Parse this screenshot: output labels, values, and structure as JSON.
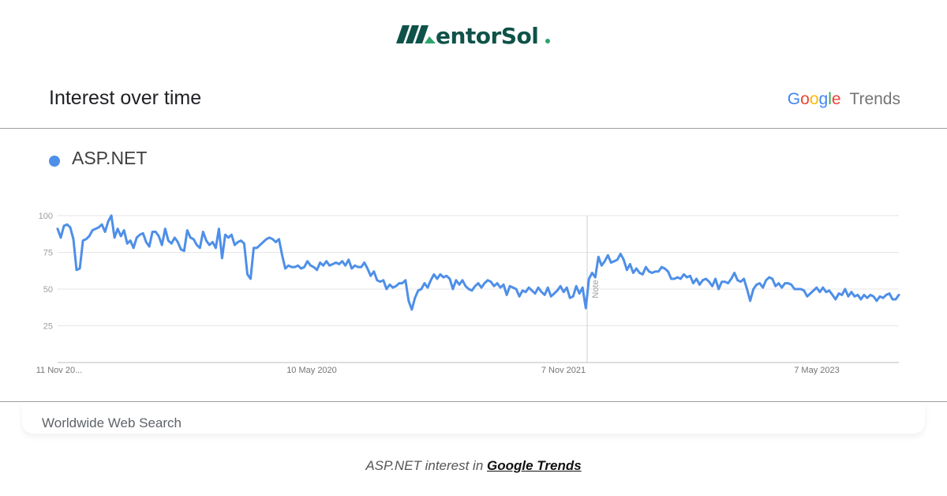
{
  "brand": {
    "name": "MentorSol",
    "logo_text": "entorSol"
  },
  "header": {
    "title": "Interest over time",
    "google": "Google",
    "trends": "Trends"
  },
  "legend": {
    "term": "ASP.NET",
    "color": "#4e8fe8"
  },
  "footer": {
    "scope": "Worldwide Web Search"
  },
  "caption": {
    "prefix": "ASP.NET interest in ",
    "link": "Google Trends"
  },
  "colors": {
    "brand_green": "#0f5249",
    "line": "#4e8fe8",
    "grid": "#e6e6e6",
    "axis": "#bdbdbd"
  },
  "chart_data": {
    "type": "line",
    "title": "Interest over time",
    "xlabel": "",
    "ylabel": "",
    "y_ticks": [
      25,
      50,
      75,
      100
    ],
    "ylim": [
      0,
      100
    ],
    "x_tick_labels": [
      "11 Nov 20...",
      "10 May 2020",
      "7 Nov 2021",
      "7 May 2023"
    ],
    "annotation": "Note",
    "grid": true,
    "series": [
      {
        "name": "ASP.NET",
        "color": "#4e8fe8",
        "values": [
          91,
          85,
          93,
          94,
          92,
          84,
          63,
          64,
          83,
          84,
          86,
          90,
          91,
          92,
          94,
          89,
          96,
          100,
          85,
          91,
          86,
          90,
          81,
          83,
          78,
          85,
          87,
          88,
          82,
          79,
          89,
          89,
          86,
          80,
          91,
          83,
          81,
          85,
          82,
          77,
          76,
          90,
          85,
          84,
          80,
          78,
          89,
          83,
          80,
          82,
          78,
          91,
          71,
          87,
          85,
          87,
          80,
          82,
          83,
          81,
          60,
          57,
          78,
          78,
          80,
          82,
          84,
          85,
          84,
          82,
          84,
          73,
          64,
          66,
          65,
          65,
          66,
          64,
          65,
          69,
          66,
          65,
          63,
          68,
          66,
          69,
          66,
          67,
          68,
          67,
          69,
          66,
          70,
          64,
          66,
          65,
          65,
          68,
          64,
          59,
          62,
          56,
          55,
          56,
          50,
          53,
          51,
          52,
          54,
          54,
          56,
          42,
          36,
          44,
          49,
          50,
          54,
          51,
          56,
          60,
          57,
          60,
          58,
          59,
          57,
          50,
          56,
          53,
          56,
          52,
          50,
          49,
          52,
          54,
          51,
          54,
          56,
          55,
          52,
          54,
          51,
          53,
          46,
          52,
          51,
          50,
          45,
          49,
          48,
          51,
          49,
          47,
          51,
          48,
          46,
          51,
          45,
          47,
          49,
          52,
          48,
          51,
          44,
          45,
          52,
          47,
          51,
          37,
          57,
          61,
          58,
          72,
          66,
          69,
          73,
          68,
          69,
          70,
          74,
          70,
          63,
          67,
          61,
          64,
          61,
          60,
          65,
          62,
          61,
          62,
          62,
          65,
          64,
          62,
          57,
          57,
          58,
          57,
          60,
          58,
          59,
          54,
          57,
          53,
          56,
          57,
          55,
          52,
          57,
          50,
          55,
          55,
          54,
          57,
          61,
          56,
          55,
          57,
          50,
          42,
          50,
          53,
          54,
          51,
          56,
          58,
          57,
          52,
          54,
          51,
          54,
          54,
          53,
          50,
          50,
          50,
          49,
          45,
          47,
          49,
          51,
          48,
          51,
          48,
          49,
          46,
          43,
          47,
          46,
          50,
          45,
          48,
          45,
          46,
          43,
          46,
          44,
          46,
          45,
          42,
          45,
          44,
          46,
          47,
          43,
          43,
          46
        ]
      }
    ]
  }
}
